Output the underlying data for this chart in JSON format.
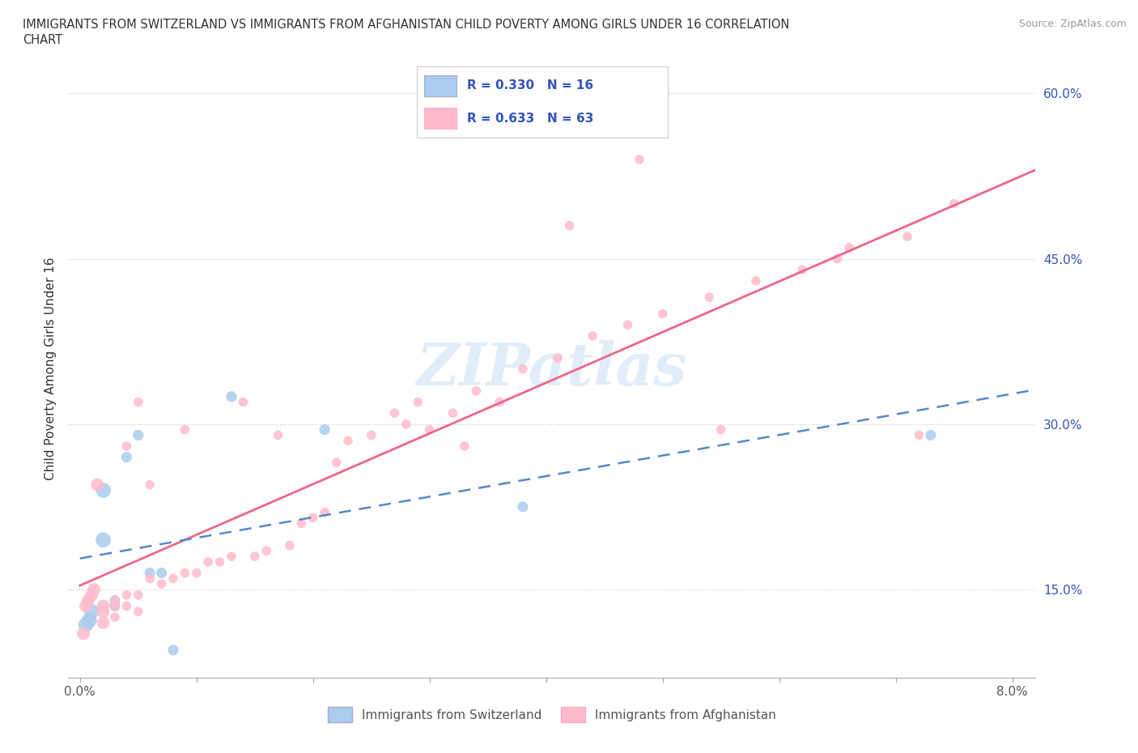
{
  "title_line1": "IMMIGRANTS FROM SWITZERLAND VS IMMIGRANTS FROM AFGHANISTAN CHILD POVERTY AMONG GIRLS UNDER 16 CORRELATION",
  "title_line2": "CHART",
  "source": "Source: ZipAtlas.com",
  "ylabel": "Child Poverty Among Girls Under 16",
  "xlim": [
    -0.001,
    0.082
  ],
  "ylim": [
    0.07,
    0.63
  ],
  "y_ticks": [
    0.15,
    0.3,
    0.45,
    0.6
  ],
  "y_tick_labels": [
    "15.0%",
    "30.0%",
    "45.0%",
    "60.0%"
  ],
  "x_tick_positions": [
    0.0,
    0.01,
    0.02,
    0.03,
    0.04,
    0.05,
    0.06,
    0.07,
    0.08
  ],
  "x_tick_labels": [
    "0.0%",
    "",
    "",
    "",
    "",
    "",
    "",
    "",
    "8.0%"
  ],
  "switzerland_color": "#aaccee",
  "afghanistan_color": "#ffbbcc",
  "switzerland_line_color": "#5588cc",
  "afghanistan_line_color": "#ee6688",
  "r_switzerland": 0.33,
  "n_switzerland": 16,
  "r_afghanistan": 0.633,
  "n_afghanistan": 63,
  "legend_r_color": "#3355bb",
  "watermark": "ZIPatlas",
  "background_color": "#ffffff",
  "grid_color": "#dddddd",
  "grid_dash_color": "#cccccc",
  "switzerland_x": [
    0.0005,
    0.0008,
    0.001,
    0.002,
    0.002,
    0.003,
    0.003,
    0.004,
    0.005,
    0.006,
    0.007,
    0.008,
    0.013,
    0.021,
    0.038,
    0.073
  ],
  "switzerland_y": [
    0.118,
    0.122,
    0.13,
    0.195,
    0.24,
    0.135,
    0.14,
    0.27,
    0.29,
    0.165,
    0.165,
    0.095,
    0.325,
    0.295,
    0.225,
    0.29
  ],
  "afghanistan_x": [
    0.0003,
    0.0005,
    0.0007,
    0.001,
    0.0012,
    0.0015,
    0.002,
    0.002,
    0.002,
    0.003,
    0.003,
    0.003,
    0.004,
    0.004,
    0.004,
    0.005,
    0.005,
    0.005,
    0.006,
    0.006,
    0.007,
    0.008,
    0.009,
    0.009,
    0.01,
    0.011,
    0.012,
    0.013,
    0.014,
    0.015,
    0.016,
    0.017,
    0.018,
    0.019,
    0.02,
    0.021,
    0.022,
    0.023,
    0.025,
    0.027,
    0.029,
    0.03,
    0.032,
    0.034,
    0.036,
    0.038,
    0.041,
    0.044,
    0.047,
    0.05,
    0.054,
    0.058,
    0.062,
    0.066,
    0.071,
    0.075,
    0.065,
    0.055,
    0.048,
    0.042,
    0.072,
    0.028,
    0.033
  ],
  "afghanistan_y": [
    0.11,
    0.135,
    0.14,
    0.145,
    0.15,
    0.245,
    0.12,
    0.13,
    0.135,
    0.125,
    0.135,
    0.14,
    0.135,
    0.145,
    0.28,
    0.13,
    0.145,
    0.32,
    0.16,
    0.245,
    0.155,
    0.16,
    0.165,
    0.295,
    0.165,
    0.175,
    0.175,
    0.18,
    0.32,
    0.18,
    0.185,
    0.29,
    0.19,
    0.21,
    0.215,
    0.22,
    0.265,
    0.285,
    0.29,
    0.31,
    0.32,
    0.295,
    0.31,
    0.33,
    0.32,
    0.35,
    0.36,
    0.38,
    0.39,
    0.4,
    0.415,
    0.43,
    0.44,
    0.46,
    0.47,
    0.5,
    0.45,
    0.295,
    0.54,
    0.48,
    0.29,
    0.3,
    0.28
  ]
}
